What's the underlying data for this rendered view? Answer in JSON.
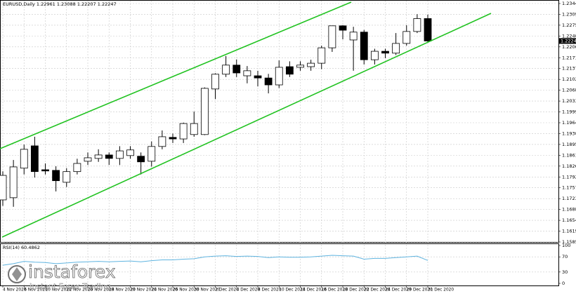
{
  "chart_data": [
    {
      "type": "candlestick",
      "symbol": "EURUSD,Daily",
      "categories": [
        "4 Nov 2020",
        null,
        "6 Nov 2020",
        null,
        "10 Nov 2020",
        null,
        "12 Nov 2020",
        null,
        "16 Nov 2020",
        null,
        "18 Nov 2020",
        null,
        "20 Nov 2020",
        null,
        "24 Nov 2020",
        null,
        "26 Nov 2020",
        null,
        "30 Nov 2020",
        null,
        "2 Dec 2020",
        null,
        "4 Dec 2020",
        null,
        "8 Dec 2020",
        null,
        "10 Dec 2020",
        null,
        "14 Dec 2020",
        null,
        "16 Dec 2020",
        null,
        "18 Dec 2020",
        null,
        "22 Dec 2020",
        null,
        "24 Dec 2020",
        null,
        "29 Dec 2020",
        null,
        "31 Dec 2020"
      ],
      "open": [
        1.1719,
        1.1726,
        1.182,
        1.1891,
        1.1815,
        1.1813,
        1.1775,
        1.1809,
        1.1842,
        1.1851,
        1.1862,
        1.1851,
        1.186,
        1.1858,
        1.1842,
        1.1889,
        1.1918,
        1.1913,
        1.1927,
        1.1927,
        1.2072,
        1.2119,
        1.2148,
        1.2114,
        1.2114,
        1.2107,
        1.2085,
        1.2143,
        1.2141,
        1.2143,
        1.2154,
        1.2203,
        1.2273,
        1.2228,
        1.2253,
        1.2165,
        1.2192,
        1.2186,
        1.2217,
        1.2255,
        1.22961
      ],
      "high": [
        1.181,
        1.1846,
        1.1895,
        1.192,
        1.1835,
        1.1826,
        1.182,
        1.185,
        1.187,
        1.188,
        1.187,
        1.189,
        1.189,
        1.187,
        1.1905,
        1.194,
        1.193,
        1.1965,
        1.2,
        1.2077,
        1.2122,
        1.2177,
        1.2166,
        1.2145,
        1.213,
        1.212,
        1.2163,
        1.216,
        1.216,
        1.2165,
        1.221,
        1.2273,
        1.2275,
        1.227,
        1.226,
        1.22,
        1.22,
        1.225,
        1.2275,
        1.231,
        1.23088
      ],
      "low": [
        1.17,
        1.1697,
        1.18,
        1.179,
        1.18,
        1.1746,
        1.176,
        1.18,
        1.183,
        1.184,
        1.183,
        1.183,
        1.185,
        1.18,
        1.1825,
        1.188,
        1.19,
        1.19,
        1.192,
        1.1925,
        1.204,
        1.211,
        1.211,
        1.209,
        1.208,
        1.2058,
        1.2075,
        1.211,
        1.213,
        1.213,
        1.2135,
        1.219,
        1.223,
        1.213,
        1.215,
        1.215,
        1.217,
        1.218,
        1.221,
        1.225,
        1.22207
      ],
      "close": [
        1.1797,
        1.1824,
        1.188,
        1.1809,
        1.1811,
        1.178,
        1.1809,
        1.1835,
        1.1853,
        1.1862,
        1.1851,
        1.1875,
        1.1878,
        1.184,
        1.1889,
        1.192,
        1.1913,
        1.1962,
        1.1962,
        1.2074,
        1.2119,
        1.2148,
        1.2123,
        1.213,
        1.2107,
        1.2085,
        1.2141,
        1.2119,
        1.2148,
        1.2154,
        1.2203,
        1.2273,
        1.2259,
        1.2253,
        1.2165,
        1.2192,
        1.2186,
        1.2217,
        1.2255,
        1.2296,
        1.22247
      ],
      "up_color": "#ffffff",
      "down_color": "#000000",
      "ylim": [
        1.1585,
        1.2344
      ],
      "yticks": [
        {
          "value": 1.2344,
          "label": "1.23440"
        },
        1.23095,
        {
          "value": 1.2275,
          "label": "1.22750"
        },
        1.22405,
        {
          "value": 1.2206,
          "label": "1.22060"
        },
        1.21715,
        {
          "value": 1.2137,
          "label": "1.21370"
        },
        1.21025,
        {
          "value": 1.2068,
          "label": "1.20680"
        },
        1.20335,
        {
          "value": 1.1999,
          "label": "1.19990"
        },
        1.19645,
        {
          "value": 1.193,
          "label": "1.19300"
        },
        1.18955,
        {
          "value": 1.1861,
          "label": "1.18610"
        },
        1.18265,
        {
          "value": 1.1792,
          "label": "1.17920"
        },
        1.17575,
        {
          "value": 1.1723,
          "label": "1.17230"
        },
        1.16885,
        {
          "value": 1.1654,
          "label": "1.16540"
        },
        1.16195,
        {
          "value": 1.1585,
          "label": "1.15850"
        }
      ],
      "grid": true
    },
    {
      "type": "line",
      "name": "RSI(14)",
      "color": "#5fb4e0",
      "values": [
        48,
        52,
        58,
        56,
        55,
        52,
        54,
        56,
        57,
        58,
        57,
        58,
        59,
        57,
        60,
        62,
        62,
        64,
        65,
        70,
        72,
        73,
        71,
        72,
        71,
        68,
        70,
        69,
        69,
        70,
        72,
        74,
        73,
        72,
        64,
        66,
        66,
        68,
        70,
        72,
        60.4862
      ],
      "ylim": [
        0,
        100
      ],
      "yticks": [
        0,
        30,
        70,
        100
      ],
      "grid": true
    }
  ],
  "watermark": {
    "brand": "instaforex",
    "tagline": "Instant Forex Trading"
  }
}
